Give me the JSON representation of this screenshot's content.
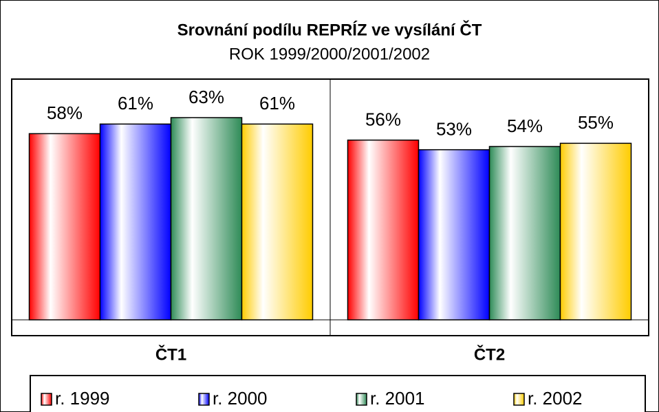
{
  "chart_data": {
    "type": "bar",
    "title": "Srovnání podílu REPRÍZ ve vysílání ČT",
    "subtitle": "ROK 1999/2000/2001/2002",
    "categories": [
      "ČT1",
      "ČT2"
    ],
    "series": [
      {
        "name": "r. 1999",
        "color": "#ff0000",
        "values": [
          58,
          56
        ],
        "value_labels": [
          "58%",
          "56%"
        ]
      },
      {
        "name": "r. 2000",
        "color": "#0000ff",
        "values": [
          61,
          53
        ],
        "value_labels": [
          "61%",
          "53%"
        ]
      },
      {
        "name": "r. 2001",
        "color": "#2e8b57",
        "values": [
          63,
          54
        ],
        "value_labels": [
          "63%",
          "54%"
        ]
      },
      {
        "name": "r. 2002",
        "color": "#ffcc00",
        "values": [
          61,
          55
        ],
        "value_labels": [
          "61%",
          "55%"
        ]
      }
    ],
    "ylim": [
      0,
      75
    ],
    "legend": "bottom"
  }
}
